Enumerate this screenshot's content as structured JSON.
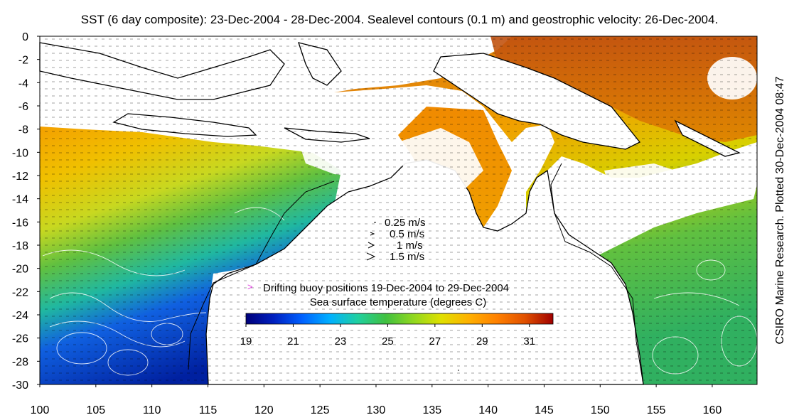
{
  "title": "SST (6 day composite): 23-Dec-2004 - 28-Dec-2004. Sealevel contours (0.1 m) and geostrophic velocity: 26-Dec-2004.",
  "credit": "CSIRO Marine Research. Plotted 30-Dec-2004 08:47",
  "axes": {
    "x_ticks": [
      "100",
      "105",
      "110",
      "115",
      "120",
      "125",
      "130",
      "135",
      "140",
      "145",
      "150",
      "155",
      "160"
    ],
    "y_ticks": [
      "0",
      "-2",
      "-4",
      "-6",
      "-8",
      "-10",
      "-12",
      "-14",
      "-16",
      "-18",
      "-20",
      "-22",
      "-24",
      "-26",
      "-28",
      "-30"
    ],
    "lon_range": [
      100,
      164
    ],
    "lat_range": [
      -30,
      0
    ]
  },
  "velocity_legend": [
    "0.25 m/s",
    "0.5 m/s",
    "1 m/s",
    "1.5 m/s"
  ],
  "buoy_legend": {
    "marker": ">",
    "text": "Drifting buoy positions 19-Dec-2004 to 29-Dec-2004",
    "color": "#e040e0"
  },
  "colorbar": {
    "title": "Sea surface temperature (degrees C)",
    "labels": [
      "19",
      "21",
      "23",
      "25",
      "27",
      "29",
      "31"
    ],
    "range": [
      19,
      32
    ],
    "colors": [
      "#00007a",
      "#0020c0",
      "#0060ff",
      "#00b0ff",
      "#20d0a0",
      "#40c040",
      "#90d820",
      "#e0e000",
      "#ffb000",
      "#ff8000",
      "#e05000",
      "#a00000"
    ]
  },
  "colors": {
    "land": "#ffffff",
    "coast": "#000000",
    "contours": "#ffffff",
    "vectors": "#000000"
  }
}
